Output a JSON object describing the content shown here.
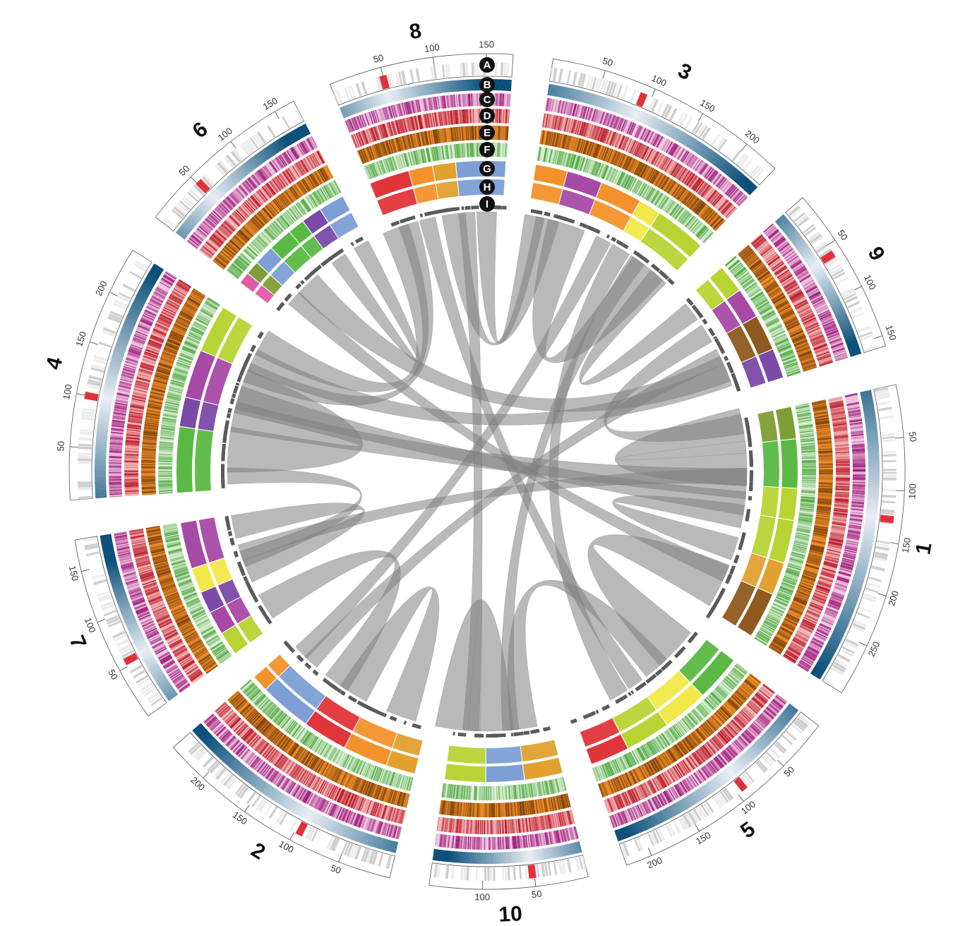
{
  "figure": {
    "type": "circos",
    "description_visible": false
  },
  "chromosomes": [
    {
      "name": "1",
      "length": 300,
      "ticks": [
        50,
        100,
        150,
        200,
        250
      ],
      "marker_at": 128
    },
    {
      "name": "5",
      "length": 225,
      "ticks": [
        50,
        100,
        150,
        200
      ],
      "marker_at": 92
    },
    {
      "name": "10",
      "length": 150,
      "ticks": [
        50,
        100
      ],
      "marker_at": 52
    },
    {
      "name": "2",
      "length": 240,
      "ticks": [
        50,
        100,
        150,
        200
      ],
      "marker_at": 95
    },
    {
      "name": "7",
      "length": 180,
      "ticks": [
        50,
        100,
        150
      ],
      "marker_at": 55
    },
    {
      "name": "4",
      "length": 245,
      "ticks": [
        50,
        100,
        150,
        200
      ],
      "marker_at": 100
    },
    {
      "name": "6",
      "length": 170,
      "ticks": [
        50,
        100,
        150
      ],
      "marker_at": 52
    },
    {
      "name": "8",
      "length": 175,
      "ticks": [
        50,
        100,
        150
      ],
      "marker_at": 50
    },
    {
      "name": "3",
      "length": 235,
      "ticks": [
        50,
        100,
        150,
        200
      ],
      "marker_at": 92
    },
    {
      "name": "9",
      "length": 160,
      "ticks": [
        50,
        100,
        150
      ],
      "marker_at": 60
    }
  ],
  "track_letters": [
    "A",
    "B",
    "C",
    "D",
    "E",
    "F",
    "G",
    "H",
    "I"
  ],
  "colors": {
    "ideogram": "#cfcfcf",
    "ideogram_light": "#ececec",
    "marker": "#e0303c",
    "blue_dark": "#0a4f7a",
    "blue_light": "#e8eef4",
    "pink_dark": "#9e1a7a",
    "pink_light": "#f4d2e6",
    "red_dark": "#b8101f",
    "red_light": "#f7c4c4",
    "brown_dark": "#7a3f0b",
    "brown_light": "#f3922c",
    "green_dark": "#4aa43a",
    "green_light": "#e7f4e1",
    "link": "#7f7f7f",
    "block_palette": [
      "#7d9fd6",
      "#e0353b",
      "#f3922c",
      "#7a4aa6",
      "#7d9e34",
      "#e05aa8",
      "#5ab945",
      "#b7d434",
      "#f2e84a",
      "#a64aa6",
      "#e2a030",
      "#8e5a1f"
    ]
  },
  "links": [
    [
      "1",
      20,
      "1",
      70,
      1.0
    ],
    [
      "1",
      150,
      "1",
      200,
      0.4
    ],
    [
      "1",
      260,
      "5",
      40,
      1.0
    ],
    [
      "1",
      100,
      "4",
      110,
      0.6
    ],
    [
      "1",
      130,
      "4",
      140,
      0.4
    ],
    [
      "1",
      90,
      "7",
      120,
      0.2
    ],
    [
      "5",
      80,
      "10",
      40,
      0.5
    ],
    [
      "5",
      150,
      "3",
      150,
      0.3
    ],
    [
      "5",
      120,
      "8",
      60,
      0.2
    ],
    [
      "10",
      90,
      "10",
      140,
      1.0
    ],
    [
      "10",
      120,
      "8",
      120,
      0.2
    ],
    [
      "10",
      60,
      "3",
      180,
      0.2
    ],
    [
      "2",
      40,
      "2",
      120,
      0.6
    ],
    [
      "2",
      150,
      "7",
      30,
      0.5
    ],
    [
      "2",
      200,
      "9",
      100,
      0.2
    ],
    [
      "7",
      90,
      "7",
      160,
      0.4
    ],
    [
      "7",
      110,
      "4",
      20,
      0.2
    ],
    [
      "4",
      60,
      "4",
      150,
      1.0
    ],
    [
      "4",
      200,
      "9",
      130,
      0.4
    ],
    [
      "4",
      180,
      "8",
      30,
      0.3
    ],
    [
      "6",
      60,
      "9",
      120,
      0.5
    ],
    [
      "6",
      120,
      "6",
      160,
      0.2
    ],
    [
      "8",
      100,
      "3",
      30,
      0.4
    ],
    [
      "8",
      150,
      "3",
      10,
      0.3
    ],
    [
      "3",
      60,
      "3",
      200,
      0.8
    ],
    [
      "3",
      220,
      "9",
      20,
      0.3
    ],
    [
      "9",
      60,
      "1",
      10,
      0.3
    ],
    [
      "6",
      30,
      "1",
      240,
      0.2
    ],
    [
      "2",
      220,
      "3",
      120,
      0.2
    ],
    [
      "8",
      10,
      "4",
      230,
      0.5
    ]
  ]
}
